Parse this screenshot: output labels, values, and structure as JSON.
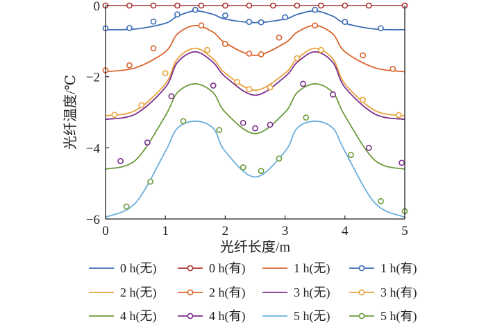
{
  "chart_data": {
    "type": "line",
    "xlabel": "光纤长度/m",
    "ylabel": "光纤温度/℃",
    "xlim": [
      0,
      5
    ],
    "ylim": [
      -6,
      0
    ],
    "xticks": [
      "0",
      "1",
      "2",
      "3",
      "4",
      "5"
    ],
    "yticks": [
      "0",
      "−2",
      "−4",
      "−6"
    ],
    "grid": false,
    "legend_position": "bottom",
    "series": [
      {
        "name": "0 h(无)",
        "color": "#3a6db5",
        "style": "line",
        "hours": 0,
        "x": [
          0,
          0.5,
          1.0,
          1.2,
          1.5,
          1.8,
          2.0,
          2.5,
          3.0,
          3.2,
          3.5,
          3.8,
          4.0,
          4.5,
          5.0
        ],
        "y": [
          -0.68,
          -0.66,
          -0.5,
          -0.3,
          -0.15,
          -0.25,
          -0.38,
          -0.48,
          -0.38,
          -0.25,
          -0.15,
          -0.3,
          -0.5,
          -0.66,
          -0.68
        ]
      },
      {
        "name": "0 h(有)",
        "color": "#a83232",
        "style": "markers",
        "hours": 0,
        "x": [
          0,
          0.4,
          0.8,
          1.2,
          1.6,
          2.0,
          2.4,
          2.8,
          3.2,
          3.6,
          4.0,
          4.4,
          5.0
        ],
        "y": [
          0,
          0,
          0,
          0,
          0,
          0,
          0,
          0,
          0,
          0,
          0,
          0,
          0
        ]
      },
      {
        "name": "1 h(无)",
        "color": "#d9622b",
        "style": "line",
        "hours": 1,
        "x": [
          0,
          0.5,
          1.0,
          1.2,
          1.5,
          1.8,
          2.0,
          2.5,
          3.0,
          3.2,
          3.5,
          3.8,
          4.0,
          4.5,
          5.0
        ],
        "y": [
          -1.86,
          -1.75,
          -1.3,
          -0.8,
          -0.56,
          -0.75,
          -1.05,
          -1.4,
          -1.05,
          -0.75,
          -0.56,
          -0.8,
          -1.3,
          -1.75,
          -1.86
        ]
      },
      {
        "name": "1 h(有)",
        "color": "#3a6db5",
        "style": "markers",
        "hours": 1,
        "x": [
          0,
          0.4,
          0.8,
          1.2,
          1.5,
          2.0,
          2.4,
          2.6,
          3.0,
          3.5,
          4.0,
          4.6
        ],
        "y": [
          -0.64,
          -0.63,
          -0.45,
          -0.25,
          -0.12,
          -0.28,
          -0.46,
          -0.47,
          -0.33,
          -0.12,
          -0.46,
          -0.64
        ]
      },
      {
        "name": "2 h(无)",
        "color": "#e8a23c",
        "style": "line",
        "hours": 2,
        "x": [
          0,
          0.5,
          1.0,
          1.2,
          1.5,
          1.8,
          2.0,
          2.5,
          3.0,
          3.2,
          3.5,
          3.8,
          4.0,
          4.5,
          5.0
        ],
        "y": [
          -3.1,
          -2.95,
          -2.2,
          -1.5,
          -1.2,
          -1.5,
          -1.9,
          -2.38,
          -1.9,
          -1.5,
          -1.2,
          -1.5,
          -2.2,
          -2.95,
          -3.1
        ]
      },
      {
        "name": "2 h(有)",
        "color": "#d9622b",
        "style": "markers",
        "hours": 2,
        "x": [
          0,
          0.4,
          0.8,
          1.6,
          2.0,
          2.4,
          2.6,
          2.9,
          3.5,
          4.3,
          4.8
        ],
        "y": [
          -1.82,
          -1.68,
          -1.2,
          -0.56,
          -1.08,
          -1.35,
          -1.37,
          -0.9,
          -0.56,
          -1.4,
          -1.78
        ]
      },
      {
        "name": "3 h(无)",
        "color": "#7b2d8e",
        "style": "line",
        "hours": 3,
        "x": [
          0,
          0.5,
          1.0,
          1.2,
          1.5,
          1.8,
          2.0,
          2.5,
          3.0,
          3.2,
          3.5,
          3.8,
          4.0,
          4.5,
          5.0
        ],
        "y": [
          -3.2,
          -3.05,
          -2.3,
          -1.6,
          -1.3,
          -1.6,
          -2.0,
          -2.52,
          -2.0,
          -1.6,
          -1.3,
          -1.6,
          -2.3,
          -3.05,
          -3.2
        ]
      },
      {
        "name": "3 h(有)",
        "color": "#e8a23c",
        "style": "markers",
        "hours": 3,
        "x": [
          0.15,
          0.6,
          1.0,
          1.7,
          2.2,
          2.4,
          2.75,
          3.2,
          3.6,
          4.3,
          4.9
        ],
        "y": [
          -3.07,
          -2.8,
          -1.9,
          -1.25,
          -2.15,
          -2.35,
          -2.3,
          -1.48,
          -1.25,
          -2.65,
          -3.08
        ]
      },
      {
        "name": "4 h(无)",
        "color": "#6a9a3a",
        "style": "line",
        "hours": 4,
        "x": [
          0,
          0.5,
          1.0,
          1.2,
          1.5,
          1.8,
          2.0,
          2.5,
          3.0,
          3.2,
          3.5,
          3.8,
          4.0,
          4.5,
          5.0
        ],
        "y": [
          -4.6,
          -4.35,
          -3.1,
          -2.45,
          -2.2,
          -2.45,
          -3.0,
          -3.6,
          -3.0,
          -2.45,
          -2.2,
          -2.45,
          -3.1,
          -4.35,
          -4.6
        ]
      },
      {
        "name": "4 h(有)",
        "color": "#7b2d8e",
        "style": "markers",
        "hours": 4,
        "x": [
          0.25,
          0.7,
          1.1,
          1.8,
          2.3,
          2.5,
          2.75,
          3.3,
          3.8,
          4.4,
          4.95
        ],
        "y": [
          -4.37,
          -3.85,
          -2.55,
          -2.25,
          -3.3,
          -3.45,
          -3.35,
          -2.2,
          -2.5,
          -4.0,
          -4.42
        ]
      },
      {
        "name": "5 h(无)",
        "color": "#6aaedc",
        "style": "line",
        "hours": 5,
        "x": [
          0,
          0.5,
          1.0,
          1.2,
          1.5,
          1.8,
          2.0,
          2.5,
          3.0,
          3.2,
          3.5,
          3.8,
          4.0,
          4.5,
          5.0
        ],
        "y": [
          -5.95,
          -5.55,
          -4.1,
          -3.45,
          -3.25,
          -3.45,
          -4.1,
          -4.82,
          -4.1,
          -3.45,
          -3.25,
          -3.45,
          -4.1,
          -5.55,
          -5.95
        ]
      },
      {
        "name": "5 h(有)",
        "color": "#6a9a3a",
        "style": "markers",
        "hours": 5,
        "x": [
          0.35,
          0.75,
          1.3,
          1.9,
          2.3,
          2.6,
          2.9,
          3.35,
          4.1,
          4.6,
          5.0
        ],
        "y": [
          -5.65,
          -4.95,
          -3.25,
          -3.5,
          -4.55,
          -4.65,
          -4.3,
          -3.15,
          -4.2,
          -5.5,
          -5.78
        ]
      }
    ]
  }
}
